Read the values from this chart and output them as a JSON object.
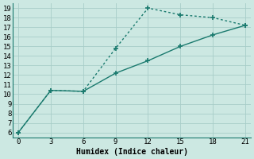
{
  "line1_x": [
    0,
    3,
    6,
    9,
    12,
    15,
    18,
    21
  ],
  "line1_y": [
    6,
    10.4,
    10.3,
    14.8,
    19.0,
    18.3,
    18.0,
    17.2
  ],
  "line2_x": [
    0,
    3,
    6,
    9,
    12,
    15,
    18,
    21
  ],
  "line2_y": [
    6,
    10.4,
    10.3,
    12.2,
    13.5,
    15.0,
    16.2,
    17.2
  ],
  "line1_color": "#1a7a6e",
  "line2_color": "#1a7a6e",
  "bg_color": "#cce8e2",
  "grid_color": "#a8cdc8",
  "xlabel": "Humidex (Indice chaleur)",
  "xlim": [
    -0.5,
    21.5
  ],
  "ylim": [
    5.5,
    19.5
  ],
  "xticks": [
    0,
    3,
    6,
    9,
    12,
    15,
    18,
    21
  ],
  "yticks": [
    6,
    7,
    8,
    9,
    10,
    11,
    12,
    13,
    14,
    15,
    16,
    17,
    18,
    19
  ],
  "marker": "+"
}
